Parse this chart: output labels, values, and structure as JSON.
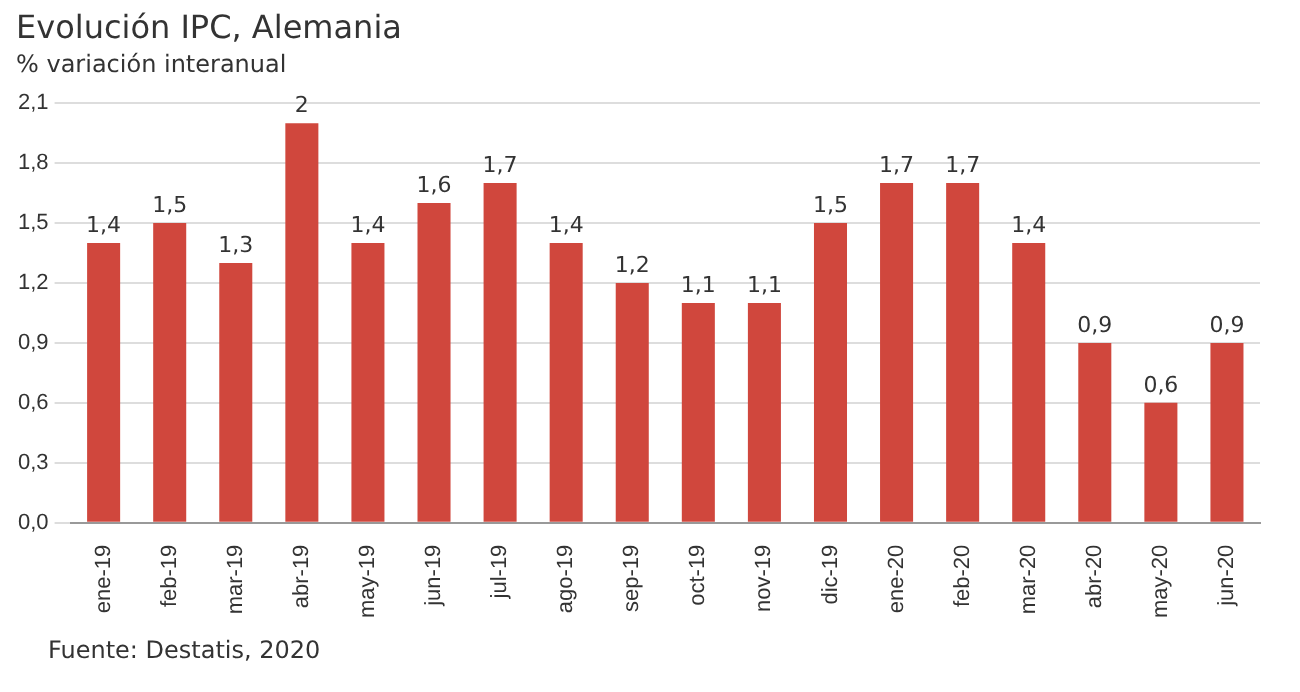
{
  "chart_data": {
    "type": "bar",
    "title": "Evolución IPC, Alemania",
    "subtitle": "% variación interanual",
    "categories": [
      "ene-19",
      "feb-19",
      "mar-19",
      "abr-19",
      "may-19",
      "jun-19",
      "jul-19",
      "ago-19",
      "sep-19",
      "oct-19",
      "nov-19",
      "dic-19",
      "ene-20",
      "feb-20",
      "mar-20",
      "abr-20",
      "may-20",
      "jun-20"
    ],
    "values": [
      1.4,
      1.5,
      1.3,
      2,
      1.4,
      1.6,
      1.7,
      1.4,
      1.2,
      1.1,
      1.1,
      1.5,
      1.7,
      1.7,
      1.4,
      0.9,
      0.6,
      0.9
    ],
    "value_labels": [
      "1,4",
      "1,5",
      "1,3",
      "2",
      "1,4",
      "1,6",
      "1,7",
      "1,4",
      "1,2",
      "1,1",
      "1,1",
      "1,5",
      "1,7",
      "1,7",
      "1,4",
      "0,9",
      "0,6",
      "0,9"
    ],
    "color": "#d0473d",
    "ylim": [
      0,
      2.1
    ],
    "yticks": [
      {
        "value": 0,
        "label": "0,0"
      },
      {
        "value": 0.3,
        "label": "0,3"
      },
      {
        "value": 0.6,
        "label": "0,6"
      },
      {
        "value": 0.9,
        "label": "0,9"
      },
      {
        "value": 1.2,
        "label": "1,2"
      },
      {
        "value": 1.5,
        "label": "1,5"
      },
      {
        "value": 1.8,
        "label": "1,8"
      },
      {
        "value": 2.1,
        "label": "2,1"
      }
    ],
    "grid": "y",
    "legend": false,
    "annotations": [
      "Fuente: Destatis, 2020"
    ]
  }
}
